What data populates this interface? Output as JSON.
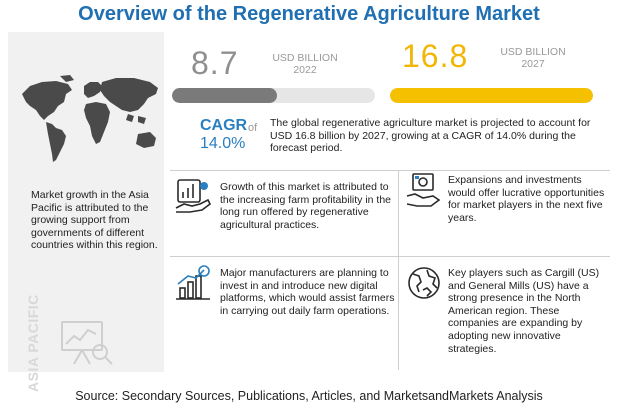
{
  "title": "Overview of the Regenerative Agriculture Market",
  "region": {
    "label": "ASIA PACIFIC",
    "text": "Market growth in the Asia Pacific is attributed to the growing support from governments of different countries within this region."
  },
  "chart_data": {
    "type": "bar",
    "categories": [
      "2022",
      "2027"
    ],
    "values": [
      8.7,
      16.8
    ],
    "unit": "USD BILLION",
    "max": 16.8,
    "colors": {
      "2022": "#7a7a7a",
      "2027": "#f5c000"
    }
  },
  "stats": {
    "v2022": "8.7",
    "v2027": "16.8",
    "unit_label": "USD BILLION",
    "y2022": "2022",
    "y2027": "2027"
  },
  "cagr": {
    "label": "CAGR",
    "of": "of",
    "value": "14.0%"
  },
  "summary": "The global regenerative agriculture market is projected to account for USD 16.8 billion by 2027, growing at a CAGR of 14.0% during the forecast period.",
  "findings": [
    "Growth of this market is attributed to the increasing farm profitability in the long run offered by regenerative agricultural practices.",
    "Expansions and investments would offer lucrative opportunities for market players in the next five years.",
    "Major manufacturers are planning to invest in and introduce new digital platforms, which would assist farmers in carrying out daily farm operations.",
    "Key players such as Cargill (US) and General Mills (US) have a strong presence in the North American region. These companies are expanding by adopting new innovative strategies."
  ],
  "source": "Source: Secondary Sources, Publications, Articles, and MarketsandMarkets Analysis",
  "colors": {
    "title": "#1f6fb2",
    "accent_blue": "#2a7fc0",
    "accent_yellow": "#f2b705",
    "grey": "#8f8f8f"
  }
}
